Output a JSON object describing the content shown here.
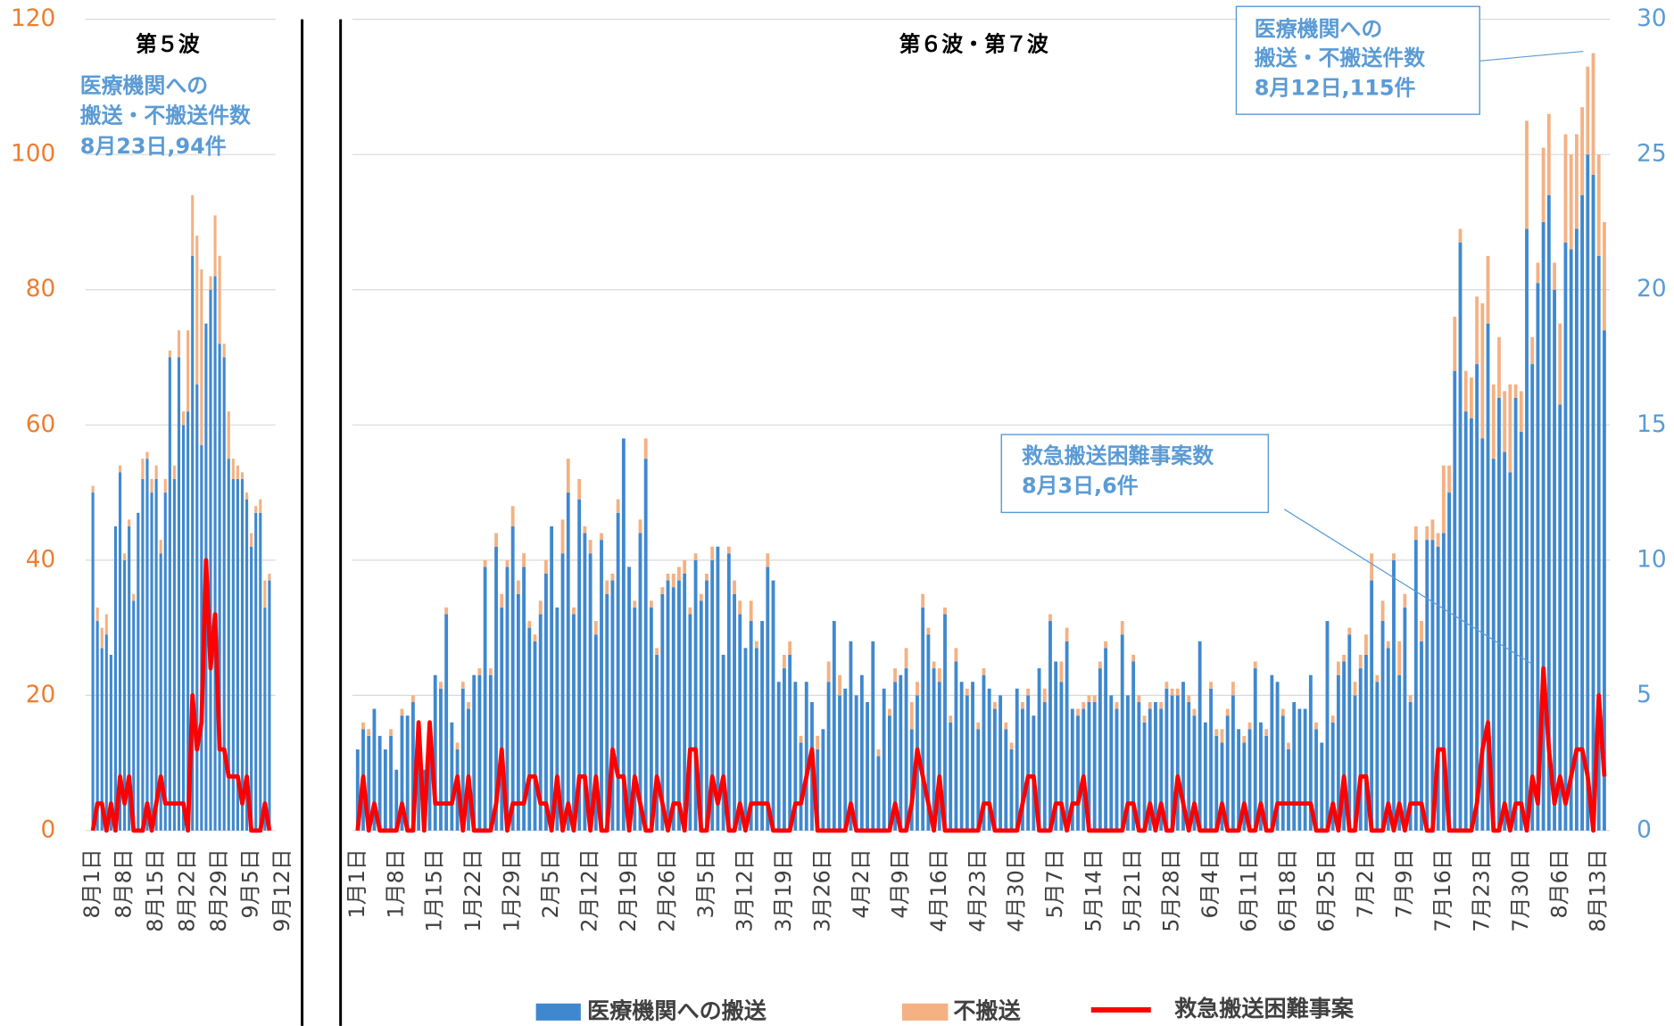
{
  "chart_data": [
    {
      "type": "bar",
      "title": "第５波",
      "annotation": [
        "医療機関への",
        "搬送・不搬送件数",
        "8月23日,94件"
      ],
      "categories": [
        "8月1日",
        null,
        null,
        null,
        null,
        null,
        null,
        "8月8日",
        null,
        null,
        null,
        null,
        null,
        null,
        "8月15日",
        null,
        null,
        null,
        null,
        null,
        null,
        "8月22日",
        null,
        null,
        null,
        null,
        null,
        null,
        "8月29日",
        null,
        null,
        null,
        null,
        null,
        null,
        "9月5日",
        null,
        null,
        null,
        null,
        null,
        null,
        "9月12日"
      ],
      "series": [
        {
          "color": "#3f88cf",
          "values": [
            50,
            31,
            27,
            29,
            26,
            45,
            53,
            40,
            45,
            34,
            47,
            52,
            55,
            50,
            52,
            41,
            50,
            70,
            52,
            70,
            60,
            62,
            85,
            66,
            57,
            75,
            80,
            82,
            72,
            70,
            55,
            52,
            52,
            52,
            49,
            42,
            47,
            47,
            33,
            37,
            null,
            null,
            null
          ]
        },
        {
          "color": "#f4b183",
          "values": [
            1,
            2,
            3,
            3,
            0,
            0,
            1,
            1,
            1,
            1,
            0,
            3,
            1,
            2,
            2,
            2,
            2,
            1,
            2,
            4,
            2,
            12,
            9,
            22,
            26,
            0,
            2,
            9,
            13,
            2,
            7,
            3,
            2,
            1,
            1,
            2,
            1,
            2,
            4,
            1,
            null,
            null,
            null
          ]
        },
        {
          "type": "line",
          "axis": "y2",
          "color": "#ff0000",
          "values": [
            0,
            1,
            1,
            0,
            1,
            0,
            2,
            1,
            2,
            0,
            0,
            0,
            1,
            0,
            1,
            2,
            1,
            1,
            1,
            1,
            1,
            0,
            5,
            3,
            4,
            10,
            6,
            8,
            3,
            3,
            2,
            2,
            2,
            1,
            2,
            0,
            0,
            0,
            1,
            0,
            null,
            null,
            null
          ]
        }
      ],
      "ylim": [
        0,
        120
      ],
      "yticks": [
        0,
        20,
        40,
        60,
        80,
        100,
        120
      ],
      "y2lim": [
        0,
        30
      ],
      "grid": true
    },
    {
      "type": "bar",
      "title": "第６波・第７波",
      "annotations": [
        [
          "医療機関への",
          "搬送・不搬送件数",
          "8月12日,115件"
        ],
        [
          "救急搬送困難事案数",
          "8月3日,6件"
        ]
      ],
      "categories": [
        "1月1日",
        null,
        null,
        null,
        null,
        null,
        null,
        "1月8日",
        null,
        null,
        null,
        null,
        null,
        null,
        "1月15日",
        null,
        null,
        null,
        null,
        null,
        null,
        "1月22日",
        null,
        null,
        null,
        null,
        null,
        null,
        "1月29日",
        null,
        null,
        null,
        null,
        null,
        null,
        "2月5日",
        null,
        null,
        null,
        null,
        null,
        null,
        "2月12日",
        null,
        null,
        null,
        null,
        null,
        null,
        "2月19日",
        null,
        null,
        null,
        null,
        null,
        null,
        "2月26日",
        null,
        null,
        null,
        null,
        null,
        null,
        "3月5日",
        null,
        null,
        null,
        null,
        null,
        null,
        "3月12日",
        null,
        null,
        null,
        null,
        null,
        null,
        "3月19日",
        null,
        null,
        null,
        null,
        null,
        null,
        "3月26日",
        null,
        null,
        null,
        null,
        null,
        null,
        "4月2日",
        null,
        null,
        null,
        null,
        null,
        null,
        "4月9日",
        null,
        null,
        null,
        null,
        null,
        null,
        "4月16日",
        null,
        null,
        null,
        null,
        null,
        null,
        "4月23日",
        null,
        null,
        null,
        null,
        null,
        null,
        "4月30日",
        null,
        null,
        null,
        null,
        null,
        null,
        "5月7日",
        null,
        null,
        null,
        null,
        null,
        null,
        "5月14日",
        null,
        null,
        null,
        null,
        null,
        null,
        "5月21日",
        null,
        null,
        null,
        null,
        null,
        null,
        "5月28日",
        null,
        null,
        null,
        null,
        null,
        null,
        "6月4日",
        null,
        null,
        null,
        null,
        null,
        null,
        "6月11日",
        null,
        null,
        null,
        null,
        null,
        null,
        "6月18日",
        null,
        null,
        null,
        null,
        null,
        null,
        "6月25日",
        null,
        null,
        null,
        null,
        null,
        null,
        "7月2日",
        null,
        null,
        null,
        null,
        null,
        null,
        "7月9日",
        null,
        null,
        null,
        null,
        null,
        null,
        "7月16日",
        null,
        null,
        null,
        null,
        null,
        null,
        "7月23日",
        null,
        null,
        null,
        null,
        null,
        null,
        "7月30日",
        null,
        null,
        null,
        null,
        null,
        null,
        "8月6日",
        null,
        null,
        null,
        null,
        null,
        null,
        "8月13日",
        null
      ],
      "series": [
        {
          "name": "医療機関への搬送",
          "color": "#3f88cf",
          "values": [
            12,
            15,
            14,
            18,
            14,
            12,
            14,
            9,
            17,
            17,
            19,
            12,
            9,
            16,
            23,
            21,
            32,
            16,
            12,
            21,
            18,
            23,
            23,
            39,
            23,
            42,
            33,
            39,
            45,
            35,
            39,
            30,
            28,
            32,
            38,
            45,
            33,
            41,
            50,
            32,
            49,
            44,
            41,
            29,
            43,
            35,
            37,
            47,
            58,
            39,
            33,
            44,
            55,
            33,
            26,
            35,
            37,
            36,
            37,
            38,
            32,
            40,
            34,
            37,
            40,
            42,
            26,
            41,
            35,
            32,
            27,
            31,
            27,
            31,
            39,
            37,
            22,
            24,
            26,
            22,
            13,
            22,
            19,
            12,
            15,
            22,
            31,
            20,
            21,
            28,
            20,
            23,
            19,
            28,
            11,
            21,
            17,
            22,
            23,
            24,
            15,
            20,
            33,
            29,
            24,
            22,
            32,
            16,
            25,
            22,
            20,
            22,
            15,
            23,
            21,
            18,
            20,
            15,
            12,
            21,
            18,
            20,
            17,
            24,
            19,
            31,
            25,
            22,
            28,
            18,
            17,
            18,
            19,
            19,
            24,
            27,
            20,
            18,
            29,
            20,
            25,
            19,
            16,
            18,
            19,
            18,
            21,
            20,
            20,
            22,
            19,
            17,
            28,
            16,
            21,
            14,
            13,
            17,
            20,
            15,
            13,
            15,
            24,
            16,
            14,
            23,
            22,
            17,
            12,
            19,
            18,
            18,
            23,
            15,
            13,
            31,
            16,
            23,
            25,
            29,
            20,
            24,
            26,
            37,
            22,
            31,
            27,
            40,
            23,
            33,
            19,
            43,
            28,
            43,
            43,
            42,
            44,
            50,
            68,
            87,
            62,
            61,
            69,
            58,
            75,
            55,
            64,
            56,
            53,
            64,
            59,
            89,
            69,
            81,
            90,
            94,
            80,
            63,
            87,
            86,
            89,
            94,
            100,
            97,
            85,
            74
          ]
        },
        {
          "name": "不搬送",
          "color": "#f4b183",
          "values": [
            0,
            1,
            1,
            0,
            0,
            0,
            1,
            0,
            1,
            0,
            1,
            0,
            0,
            0,
            0,
            1,
            1,
            0,
            1,
            1,
            1,
            0,
            1,
            1,
            1,
            2,
            2,
            1,
            3,
            2,
            2,
            1,
            1,
            2,
            2,
            0,
            0,
            5,
            5,
            1,
            3,
            1,
            2,
            2,
            1,
            2,
            1,
            2,
            0,
            0,
            1,
            2,
            3,
            1,
            1,
            1,
            1,
            2,
            2,
            2,
            1,
            1,
            1,
            1,
            2,
            0,
            0,
            1,
            2,
            2,
            0,
            3,
            1,
            0,
            2,
            0,
            0,
            2,
            2,
            0,
            1,
            0,
            0,
            2,
            0,
            3,
            0,
            3,
            0,
            0,
            0,
            0,
            0,
            0,
            1,
            0,
            1,
            2,
            0,
            3,
            4,
            2,
            2,
            1,
            1,
            2,
            1,
            1,
            2,
            0,
            1,
            0,
            1,
            1,
            0,
            1,
            0,
            1,
            1,
            0,
            1,
            1,
            0,
            0,
            2,
            1,
            0,
            3,
            2,
            0,
            1,
            1,
            1,
            1,
            1,
            1,
            0,
            1,
            2,
            0,
            1,
            1,
            1,
            1,
            0,
            1,
            1,
            1,
            1,
            0,
            1,
            1,
            0,
            0,
            1,
            1,
            2,
            1,
            2,
            0,
            1,
            1,
            1,
            0,
            1,
            0,
            0,
            1,
            1,
            0,
            0,
            0,
            0,
            1,
            0,
            0,
            1,
            2,
            1,
            1,
            2,
            2,
            3,
            4,
            1,
            3,
            1,
            1,
            5,
            2,
            1,
            2,
            3,
            2,
            3,
            2,
            10,
            4,
            8,
            2,
            6,
            6,
            10,
            20,
            10,
            11,
            9,
            9,
            13,
            2,
            6,
            16,
            4,
            3,
            11,
            12,
            4,
            12,
            16,
            14,
            14,
            13,
            13,
            18,
            15,
            16
          ]
        },
        {
          "name": "救急搬送困難事案",
          "type": "line",
          "axis": "y2",
          "color": "#ff0000",
          "values": [
            0,
            2,
            0,
            1,
            0,
            0,
            0,
            0,
            1,
            0,
            0,
            4,
            0,
            4,
            1,
            1,
            1,
            1,
            2,
            0,
            2,
            0,
            0,
            0,
            0,
            1,
            3,
            0,
            1,
            1,
            1,
            2,
            2,
            1,
            1,
            0,
            2,
            0,
            1,
            0,
            2,
            2,
            0,
            2,
            0,
            0,
            3,
            2,
            2,
            0,
            2,
            1,
            0,
            0,
            2,
            1,
            0,
            1,
            1,
            0,
            3,
            3,
            0,
            0,
            2,
            1,
            2,
            0,
            0,
            1,
            0,
            1,
            1,
            1,
            1,
            0,
            0,
            0,
            0,
            1,
            1,
            2,
            3,
            0,
            0,
            0,
            0,
            0,
            0,
            1,
            0,
            0,
            0,
            0,
            0,
            0,
            0,
            1,
            0,
            0,
            1,
            3,
            2,
            1,
            0,
            2,
            0,
            0,
            0,
            0,
            0,
            0,
            0,
            1,
            1,
            0,
            0,
            0,
            0,
            0,
            1,
            2,
            2,
            0,
            0,
            0,
            1,
            1,
            0,
            1,
            1,
            2,
            0,
            0,
            0,
            0,
            0,
            0,
            0,
            1,
            1,
            0,
            0,
            1,
            0,
            1,
            0,
            0,
            2,
            1,
            0,
            1,
            0,
            0,
            0,
            0,
            1,
            0,
            0,
            0,
            1,
            0,
            0,
            1,
            0,
            0,
            1,
            1,
            1,
            1,
            1,
            1,
            1,
            0,
            0,
            0,
            1,
            0,
            2,
            0,
            0,
            2,
            2,
            0,
            0,
            0,
            1,
            0,
            1,
            0,
            1,
            1,
            1,
            0,
            0,
            3,
            3,
            0,
            0,
            0,
            0,
            0,
            1,
            3,
            4,
            0,
            0,
            1,
            0,
            1,
            1,
            0,
            2,
            1,
            6,
            3,
            1,
            2,
            1,
            2,
            3,
            3,
            2,
            0,
            5,
            2
          ]
        }
      ],
      "ylim": [
        0,
        120
      ],
      "y2lim": [
        0,
        30
      ],
      "y2ticks": [
        0,
        5,
        10,
        15,
        20,
        25,
        30
      ],
      "grid": true
    }
  ]
}
